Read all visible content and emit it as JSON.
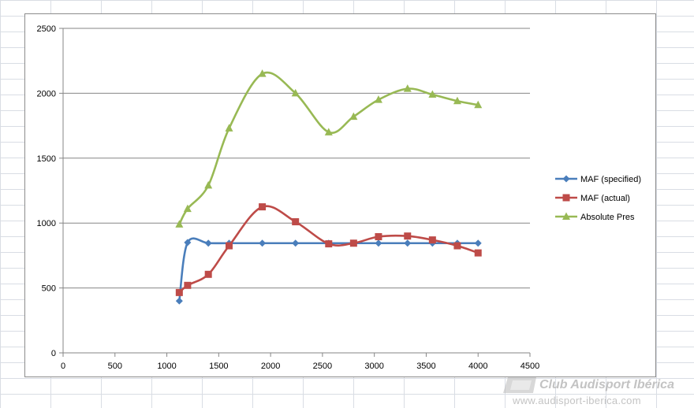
{
  "chart_data": {
    "type": "line",
    "title": "",
    "xlabel": "",
    "ylabel": "",
    "xlim": [
      0,
      4500
    ],
    "ylim": [
      0,
      2500
    ],
    "x_ticks": [
      0,
      500,
      1000,
      1500,
      2000,
      2500,
      3000,
      3500,
      4000,
      4500
    ],
    "y_ticks": [
      0,
      500,
      1000,
      1500,
      2000,
      2500
    ],
    "grid": "horizontal major gridlines",
    "legend_position": "right",
    "smoothed": true,
    "series": [
      {
        "name": "MAF (specified)",
        "color": "#4a7ebb",
        "marker": "diamond",
        "x": [
          1120,
          1200,
          1400,
          1600,
          1920,
          2240,
          2560,
          2800,
          3040,
          3320,
          3560,
          3800,
          4000
        ],
        "y": [
          400,
          850,
          845,
          845,
          845,
          845,
          845,
          845,
          845,
          845,
          845,
          845,
          845
        ]
      },
      {
        "name": "MAF (actual)",
        "color": "#be4b48",
        "marker": "square",
        "x": [
          1120,
          1200,
          1400,
          1600,
          1920,
          2240,
          2560,
          2800,
          3040,
          3320,
          3560,
          3800,
          4000
        ],
        "y": [
          465,
          520,
          605,
          825,
          1125,
          1010,
          840,
          845,
          895,
          900,
          870,
          825,
          770
        ]
      },
      {
        "name": "Absolute Pres",
        "color": "#98b954",
        "marker": "triangle",
        "x": [
          1120,
          1200,
          1400,
          1600,
          1920,
          2240,
          2560,
          2800,
          3040,
          3320,
          3560,
          3800,
          4000
        ],
        "y": [
          990,
          1110,
          1290,
          1730,
          2150,
          2000,
          1700,
          1820,
          1950,
          2035,
          1990,
          1940,
          1910
        ]
      }
    ]
  },
  "watermark": {
    "title": "Club Audisport Ibérica",
    "url": "www.audisport-iberica.com"
  }
}
